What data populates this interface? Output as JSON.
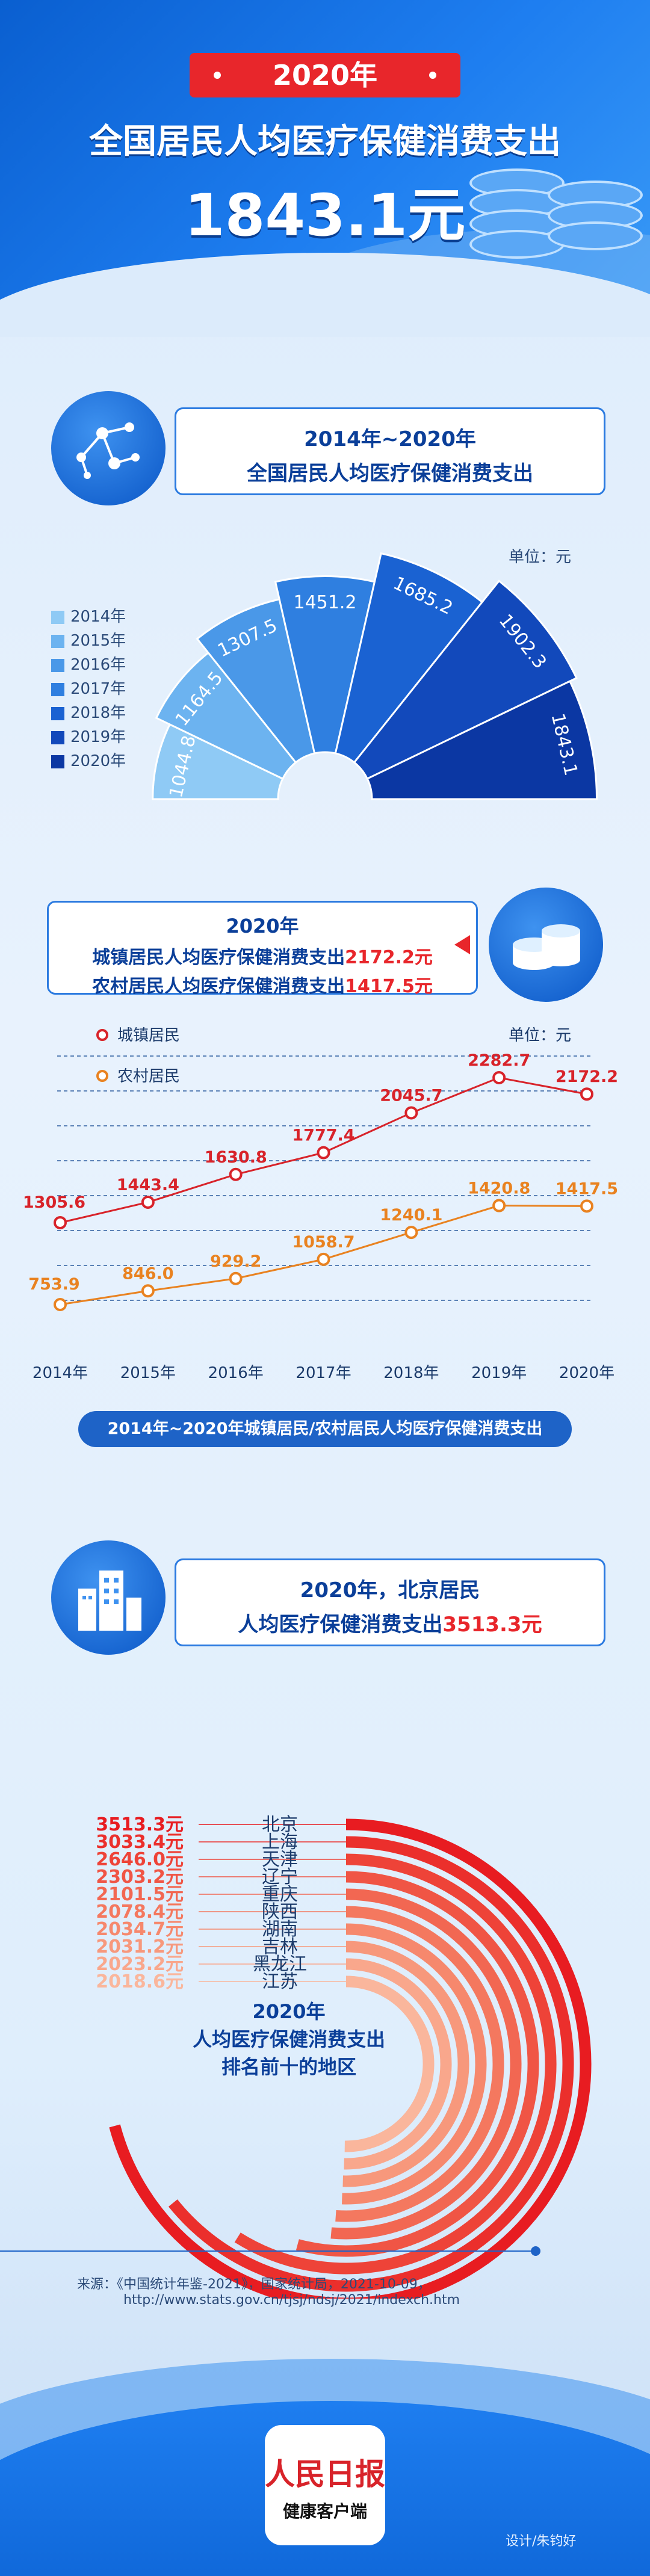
{
  "header": {
    "year_badge": "2020年",
    "title": "全国居民人均医疗保健消费支出",
    "value": "1843.1元"
  },
  "section1": {
    "title_line1": "2014年~2020年",
    "title_line2": "全国居民人均医疗保健消费支出",
    "unit": "单位：元"
  },
  "section2": {
    "title_year": "2020年",
    "urban_text": "城镇居民人均医疗保健消费支出",
    "urban_value": "2172.2元",
    "rural_text": "农村居民人均医疗保健消费支出",
    "rural_value": "1417.5元",
    "unit": "单位：元",
    "caption": "2014年~2020年城镇居民/农村居民人均医疗保健消费支出"
  },
  "section3": {
    "title_line1": "2020年，北京居民",
    "title_line2_prefix": "人均医疗保健消费支出",
    "title_line2_value": "3513.3元",
    "center_line1": "2020年",
    "center_line2": "人均医疗保健消费支出",
    "center_line3": "排名前十的地区"
  },
  "footer": {
    "source_line1": "来源：《中国统计年鉴-2021》，国家统计局，2021-10-09，",
    "source_line2": "http://www.stats.gov.cn/tjsj/ndsj/2021/indexch.htm",
    "logo_text": "人民日报",
    "logo_sub": "健康客户端",
    "designer": "设计/朱钧好"
  },
  "colors": {
    "accent_red": "#e8262b",
    "brand_blue": "#1e63c7",
    "urban_line": "#d8232a",
    "rural_line": "#e98220"
  },
  "chart_data": [
    {
      "type": "bar",
      "layout": "radial-fan",
      "categories": [
        "2014年",
        "2015年",
        "2016年",
        "2017年",
        "2018年",
        "2019年",
        "2020年"
      ],
      "values": [
        1044.8,
        1164.5,
        1307.5,
        1451.2,
        1685.2,
        1902.3,
        1843.1
      ],
      "value_labels": [
        "1044.8",
        "1164.5",
        "1307.5",
        "1451.2",
        "1685.2",
        "1902.3",
        "1843.1"
      ],
      "colors": [
        "#8fcaf5",
        "#6cb3f0",
        "#4a98e8",
        "#2f7fe0",
        "#1a62d2",
        "#1249bb",
        "#0b37a3"
      ],
      "legend": [
        "2014年",
        "2015年",
        "2016年",
        "2017年",
        "2018年",
        "2019年",
        "2020年"
      ],
      "legend_position": "left"
    },
    {
      "type": "line",
      "x": [
        "2014年",
        "2015年",
        "2016年",
        "2017年",
        "2018年",
        "2019年",
        "2020年"
      ],
      "series": [
        {
          "name": "城镇居民",
          "values": [
            1305.6,
            1443.4,
            1630.8,
            1777.4,
            2045.7,
            2282.7,
            2172.2
          ],
          "labels": [
            "1305.6",
            "1443.4",
            "1630.8",
            "1777.4",
            "2045.7",
            "2282.7",
            "2172.2"
          ]
        },
        {
          "name": "农村居民",
          "values": [
            753.9,
            846.0,
            929.2,
            1058.7,
            1240.1,
            1420.8,
            1417.5
          ],
          "labels": [
            "753.9",
            "846.0",
            "929.2",
            "1058.7",
            "1240.1",
            "1420.8",
            "1417.5"
          ]
        }
      ],
      "grid": true,
      "legend_position": "top-left"
    },
    {
      "type": "bar",
      "layout": "radial-arcs",
      "categories": [
        "北京",
        "上海",
        "天津",
        "辽宁",
        "重庆",
        "陕西",
        "湖南",
        "吉林",
        "黑龙江",
        "江苏"
      ],
      "values": [
        3513.3,
        3033.4,
        2646.0,
        2303.2,
        2101.5,
        2078.4,
        2034.7,
        2031.2,
        2023.2,
        2018.6
      ],
      "value_labels": [
        "3513.3元",
        "3033.4元",
        "2646.0元",
        "2303.2元",
        "2101.5元",
        "2078.4元",
        "2034.7元",
        "2031.2元",
        "2023.2元",
        "2018.6元"
      ]
    }
  ]
}
